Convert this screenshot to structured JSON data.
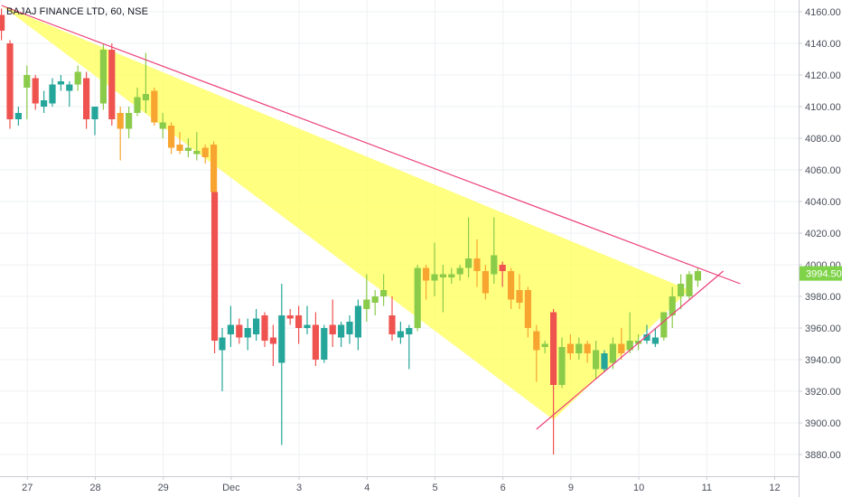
{
  "colors": {
    "up": "#8bcb4a",
    "up_alt": "#26a69a",
    "down": "#ef5350",
    "down_alt": "#f7a530",
    "triangle_fill": "#ffff5c",
    "trendline": "#ec407a",
    "price_label_bg": "#7ed348"
  },
  "chart_data": {
    "type": "candlestick",
    "title": "BAJAJ FINANCE LTD, 60, NSE",
    "ylim": [
      3868,
      4170
    ],
    "y_ticks": [
      3880,
      3900,
      3920,
      3940,
      3960,
      3980,
      4000,
      4020,
      4040,
      4060,
      4080,
      4100,
      4120,
      4140,
      4160
    ],
    "x_ticks": [
      {
        "label": "27",
        "x": 2
      },
      {
        "label": "28",
        "x": 10
      },
      {
        "label": "29",
        "x": 18
      },
      {
        "label": "Dec",
        "x": 26
      },
      {
        "label": "3",
        "x": 34
      },
      {
        "label": "4",
        "x": 42
      },
      {
        "label": "5",
        "x": 50
      },
      {
        "label": "6",
        "x": 58
      },
      {
        "label": "9",
        "x": 66
      },
      {
        "label": "10",
        "x": 74
      },
      {
        "label": "11",
        "x": 82
      },
      {
        "label": "12",
        "x": 90
      }
    ],
    "last_price": "3994.50",
    "grid": true,
    "candles": [
      {
        "x": -1,
        "o": 4158,
        "h": 4162,
        "c": 4148,
        "l": 4142,
        "col": "down"
      },
      {
        "x": 0,
        "o": 4140,
        "h": 4142,
        "c": 4092,
        "l": 4086,
        "col": "down"
      },
      {
        "x": 1,
        "o": 4092,
        "h": 4100,
        "c": 4096,
        "l": 4088,
        "col": "up_alt"
      },
      {
        "x": 2,
        "o": 4112,
        "h": 4126,
        "c": 4120,
        "l": 4092,
        "col": "up"
      },
      {
        "x": 3,
        "o": 4118,
        "h": 4120,
        "c": 4102,
        "l": 4098,
        "col": "down"
      },
      {
        "x": 4,
        "o": 4104,
        "h": 4110,
        "c": 4100,
        "l": 4096,
        "col": "up_alt"
      },
      {
        "x": 5,
        "o": 4102,
        "h": 4118,
        "c": 4114,
        "l": 4100,
        "col": "up_alt"
      },
      {
        "x": 6,
        "o": 4114,
        "h": 4120,
        "c": 4116,
        "l": 4110,
        "col": "up_alt"
      },
      {
        "x": 7,
        "o": 4114,
        "h": 4116,
        "c": 4110,
        "l": 4100,
        "col": "up_alt"
      },
      {
        "x": 8,
        "o": 4114,
        "h": 4126,
        "c": 4122,
        "l": 4110,
        "col": "up"
      },
      {
        "x": 9,
        "o": 4118,
        "h": 4122,
        "c": 4092,
        "l": 4086,
        "col": "down"
      },
      {
        "x": 10,
        "o": 4092,
        "h": 4098,
        "c": 4100,
        "l": 4082,
        "col": "up_alt"
      },
      {
        "x": 11,
        "o": 4102,
        "h": 4140,
        "c": 4136,
        "l": 4098,
        "col": "up"
      },
      {
        "x": 12,
        "o": 4136,
        "h": 4140,
        "c": 4092,
        "l": 4088,
        "col": "down"
      },
      {
        "x": 13,
        "o": 4096,
        "h": 4100,
        "c": 4086,
        "l": 4066,
        "col": "down_alt"
      },
      {
        "x": 14,
        "o": 4086,
        "h": 4100,
        "c": 4096,
        "l": 4080,
        "col": "up"
      },
      {
        "x": 15,
        "o": 4096,
        "h": 4112,
        "c": 4106,
        "l": 4094,
        "col": "up"
      },
      {
        "x": 16,
        "o": 4104,
        "h": 4134,
        "c": 4108,
        "l": 4096,
        "col": "up"
      },
      {
        "x": 17,
        "o": 4110,
        "h": 4112,
        "c": 4090,
        "l": 4088,
        "col": "down_alt"
      },
      {
        "x": 18,
        "o": 4090,
        "h": 4096,
        "c": 4086,
        "l": 4080,
        "col": "up"
      },
      {
        "x": 19,
        "o": 4088,
        "h": 4090,
        "c": 4074,
        "l": 4070,
        "col": "down_alt"
      },
      {
        "x": 20,
        "o": 4076,
        "h": 4084,
        "c": 4072,
        "l": 4070,
        "col": "down_alt"
      },
      {
        "x": 21,
        "o": 4074,
        "h": 4080,
        "c": 4072,
        "l": 4068,
        "col": "up"
      },
      {
        "x": 22,
        "o": 4072,
        "h": 4084,
        "c": 4070,
        "l": 4066,
        "col": "up"
      },
      {
        "x": 23,
        "o": 4074,
        "h": 4076,
        "c": 4068,
        "l": 4064,
        "col": "down_alt"
      },
      {
        "x": 24,
        "o": 4076,
        "h": 4078,
        "c": 4046,
        "l": 4042,
        "col": "down_alt"
      },
      {
        "x": 24.1,
        "o": 4046,
        "h": 4046,
        "c": 3952,
        "l": 3944,
        "col": "down"
      },
      {
        "x": 25,
        "o": 3954,
        "h": 3960,
        "c": 3946,
        "l": 3920,
        "col": "up_alt"
      },
      {
        "x": 26,
        "o": 3956,
        "h": 3974,
        "c": 3962,
        "l": 3948,
        "col": "up_alt"
      },
      {
        "x": 27,
        "o": 3962,
        "h": 3966,
        "c": 3954,
        "l": 3950,
        "col": "down"
      },
      {
        "x": 28,
        "o": 3954,
        "h": 3966,
        "c": 3960,
        "l": 3946,
        "col": "up_alt"
      },
      {
        "x": 29,
        "o": 3966,
        "h": 3972,
        "c": 3956,
        "l": 3952,
        "col": "up_alt"
      },
      {
        "x": 30,
        "o": 3968,
        "h": 3970,
        "c": 3952,
        "l": 3948,
        "col": "down"
      },
      {
        "x": 31,
        "o": 3954,
        "h": 3962,
        "c": 3950,
        "l": 3936,
        "col": "down"
      },
      {
        "x": 32,
        "o": 3938,
        "h": 3988,
        "c": 3968,
        "l": 3886,
        "col": "up_alt"
      },
      {
        "x": 33,
        "o": 3968,
        "h": 3972,
        "c": 3966,
        "l": 3962,
        "col": "down"
      },
      {
        "x": 34,
        "o": 3968,
        "h": 3974,
        "c": 3960,
        "l": 3950,
        "col": "down"
      },
      {
        "x": 35,
        "o": 3962,
        "h": 3974,
        "c": 3960,
        "l": 3956,
        "col": "up_alt"
      },
      {
        "x": 36,
        "o": 3962,
        "h": 3970,
        "c": 3940,
        "l": 3936,
        "col": "down"
      },
      {
        "x": 37,
        "o": 3940,
        "h": 3962,
        "c": 3960,
        "l": 3938,
        "col": "up_alt"
      },
      {
        "x": 38,
        "o": 3956,
        "h": 3978,
        "c": 3962,
        "l": 3948,
        "col": "down"
      },
      {
        "x": 39,
        "o": 3954,
        "h": 3964,
        "c": 3962,
        "l": 3948,
        "col": "up_alt"
      },
      {
        "x": 40,
        "o": 3956,
        "h": 3968,
        "c": 3964,
        "l": 3950,
        "col": "up_alt"
      },
      {
        "x": 41,
        "o": 3954,
        "h": 3978,
        "c": 3974,
        "l": 3946,
        "col": "up_alt"
      },
      {
        "x": 42,
        "o": 3972,
        "h": 3994,
        "c": 3978,
        "l": 3964,
        "col": "up"
      },
      {
        "x": 43,
        "o": 3976,
        "h": 3984,
        "c": 3980,
        "l": 3968,
        "col": "up"
      },
      {
        "x": 44,
        "o": 3980,
        "h": 3994,
        "c": 3984,
        "l": 3974,
        "col": "up"
      },
      {
        "x": 45,
        "o": 3968,
        "h": 3980,
        "c": 3956,
        "l": 3952,
        "col": "down"
      },
      {
        "x": 46,
        "o": 3958,
        "h": 3964,
        "c": 3954,
        "l": 3950,
        "col": "up_alt"
      },
      {
        "x": 47,
        "o": 3956,
        "h": 3962,
        "c": 3960,
        "l": 3934,
        "col": "up_alt"
      },
      {
        "x": 48,
        "o": 3960,
        "h": 4000,
        "c": 3998,
        "l": 3958,
        "col": "up"
      },
      {
        "x": 49,
        "o": 3998,
        "h": 4000,
        "c": 3990,
        "l": 3978,
        "col": "down_alt"
      },
      {
        "x": 50,
        "o": 3990,
        "h": 4014,
        "c": 3994,
        "l": 3980,
        "col": "up"
      },
      {
        "x": 51,
        "o": 3994,
        "h": 4000,
        "c": 3992,
        "l": 3970,
        "col": "up"
      },
      {
        "x": 52,
        "o": 3992,
        "h": 3998,
        "c": 3994,
        "l": 3988,
        "col": "up"
      },
      {
        "x": 53,
        "o": 3994,
        "h": 4000,
        "c": 3998,
        "l": 3990,
        "col": "up"
      },
      {
        "x": 54,
        "o": 3998,
        "h": 4030,
        "c": 4004,
        "l": 3992,
        "col": "up"
      },
      {
        "x": 55,
        "o": 4004,
        "h": 4016,
        "c": 3996,
        "l": 3986,
        "col": "down_alt"
      },
      {
        "x": 56,
        "o": 3996,
        "h": 4000,
        "c": 3982,
        "l": 3978,
        "col": "down_alt"
      },
      {
        "x": 57,
        "o": 3994,
        "h": 4030,
        "c": 4006,
        "l": 3988,
        "col": "up"
      },
      {
        "x": 58,
        "o": 4000,
        "h": 4002,
        "c": 3996,
        "l": 3986,
        "col": "down"
      },
      {
        "x": 59,
        "o": 3996,
        "h": 3998,
        "c": 3978,
        "l": 3972,
        "col": "down_alt"
      },
      {
        "x": 60,
        "o": 3984,
        "h": 3994,
        "c": 3976,
        "l": 3972,
        "col": "down_alt"
      },
      {
        "x": 61,
        "o": 3984,
        "h": 3986,
        "c": 3960,
        "l": 3954,
        "col": "down_alt"
      },
      {
        "x": 62,
        "o": 3958,
        "h": 3962,
        "c": 3946,
        "l": 3926,
        "col": "down_alt"
      },
      {
        "x": 63,
        "o": 3950,
        "h": 3952,
        "c": 3948,
        "l": 3944,
        "col": "up"
      },
      {
        "x": 64,
        "o": 3970,
        "h": 3972,
        "c": 3924,
        "l": 3880,
        "col": "down"
      },
      {
        "x": 65,
        "o": 3924,
        "h": 3954,
        "c": 3948,
        "l": 3922,
        "col": "up"
      },
      {
        "x": 66,
        "o": 3950,
        "h": 3956,
        "c": 3944,
        "l": 3940,
        "col": "down_alt"
      },
      {
        "x": 67,
        "o": 3944,
        "h": 3954,
        "c": 3950,
        "l": 3940,
        "col": "up"
      },
      {
        "x": 68,
        "o": 3950,
        "h": 3952,
        "c": 3944,
        "l": 3938,
        "col": "down_alt"
      },
      {
        "x": 69,
        "o": 3946,
        "h": 3952,
        "c": 3934,
        "l": 3928,
        "col": "up"
      },
      {
        "x": 70,
        "o": 3944,
        "h": 3946,
        "c": 3934,
        "l": 3932,
        "col": "up_alt"
      },
      {
        "x": 71,
        "o": 3938,
        "h": 3954,
        "c": 3950,
        "l": 3934,
        "col": "up"
      },
      {
        "x": 72,
        "o": 3950,
        "h": 3960,
        "c": 3944,
        "l": 3940,
        "col": "down_alt"
      },
      {
        "x": 73,
        "o": 3946,
        "h": 3970,
        "c": 3952,
        "l": 3944,
        "col": "up"
      },
      {
        "x": 74,
        "o": 3950,
        "h": 3956,
        "c": 3952,
        "l": 3946,
        "col": "up"
      },
      {
        "x": 75,
        "o": 3952,
        "h": 3962,
        "c": 3956,
        "l": 3950,
        "col": "up_alt"
      },
      {
        "x": 76,
        "o": 3950,
        "h": 3960,
        "c": 3954,
        "l": 3948,
        "col": "up_alt"
      },
      {
        "x": 77,
        "o": 3954,
        "h": 3970,
        "c": 3970,
        "l": 3952,
        "col": "up"
      },
      {
        "x": 78,
        "o": 3968,
        "h": 3986,
        "c": 3980,
        "l": 3960,
        "col": "up"
      },
      {
        "x": 79,
        "o": 3980,
        "h": 3994,
        "c": 3988,
        "l": 3972,
        "col": "up"
      },
      {
        "x": 80,
        "o": 3980,
        "h": 3996,
        "c": 3994,
        "l": 3978,
        "col": "up"
      },
      {
        "x": 81,
        "o": 3990,
        "h": 3998,
        "c": 3996,
        "l": 3986,
        "col": "up"
      }
    ],
    "pattern": {
      "triangle": [
        [
          -1,
          4164
        ],
        [
          64,
          3902
        ],
        [
          80,
          3984
        ]
      ],
      "upper_line": [
        [
          -1,
          4164
        ],
        [
          86,
          3988
        ]
      ],
      "lower_line": [
        [
          62,
          3896
        ],
        [
          84,
          3996
        ]
      ]
    }
  }
}
